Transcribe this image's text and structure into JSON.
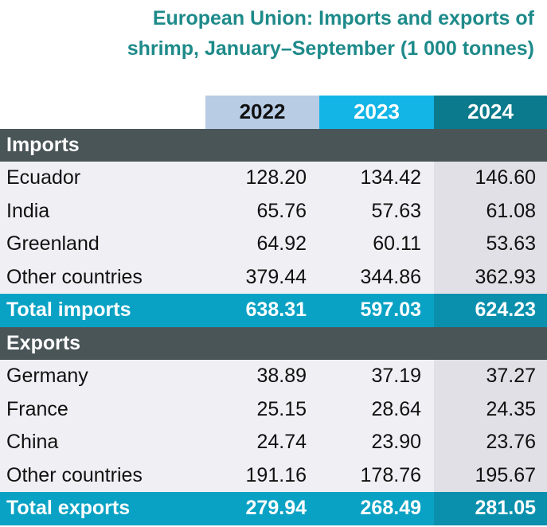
{
  "chart_data": {
    "type": "table",
    "title": "European Union:  Imports and exports of shrimp, January–September (1 000 tonnes)",
    "title_line1": "European Union:  Imports and exports of",
    "title_line2": "shrimp, January–September (1 000 tonnes)",
    "columns": [
      "2022",
      "2023",
      "2024"
    ],
    "sections": [
      {
        "label": "Imports",
        "rows": [
          {
            "label": "Ecuador",
            "values": [
              "128.20",
              "134.42",
              "146.60"
            ]
          },
          {
            "label": "India",
            "values": [
              "65.76",
              "57.63",
              "61.08"
            ]
          },
          {
            "label": "Greenland",
            "values": [
              "64.92",
              "60.11",
              "53.63"
            ]
          },
          {
            "label": "Other countries",
            "values": [
              "379.44",
              "344.86",
              "362.93"
            ]
          }
        ],
        "total": {
          "label": "Total imports",
          "values": [
            "638.31",
            "597.03",
            "624.23"
          ]
        }
      },
      {
        "label": "Exports",
        "rows": [
          {
            "label": "Germany",
            "values": [
              "38.89",
              "37.19",
              "37.27"
            ]
          },
          {
            "label": "France",
            "values": [
              "25.15",
              "28.64",
              "24.35"
            ]
          },
          {
            "label": "China",
            "values": [
              "24.74",
              "23.90",
              "23.76"
            ]
          },
          {
            "label": "Other countries",
            "values": [
              "191.16",
              "178.76",
              "195.67"
            ]
          }
        ],
        "total": {
          "label": "Total exports",
          "values": [
            "279.94",
            "268.49",
            "281.05"
          ]
        }
      }
    ],
    "colors": {
      "title": "#1e8a8a",
      "col_2022": "#b8cce4",
      "col_2023": "#13b5e6",
      "col_2024": "#0b7a8c",
      "section_bar": "#4a5558",
      "total_bar": "#0aa2c4"
    }
  }
}
